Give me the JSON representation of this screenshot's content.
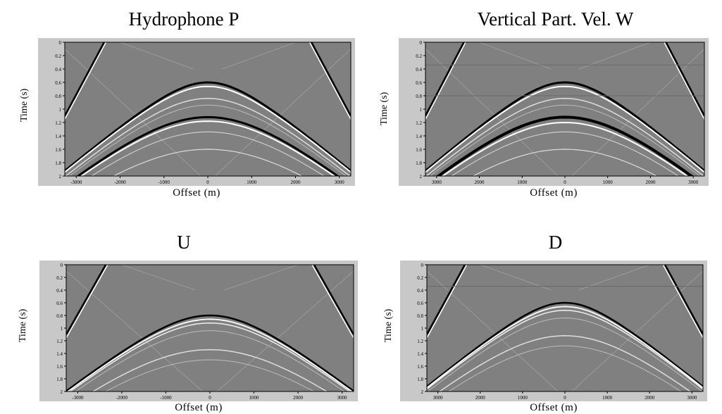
{
  "chart_data": [
    {
      "type": "heatmap",
      "title": "Hydrophone P",
      "xlabel": "Offset (m)",
      "ylabel": "Time (s)",
      "y_tick_labels": [
        "0",
        "0.2",
        "0.4",
        "0.6",
        "0.8",
        "1",
        "1.2",
        "1.4",
        "1.6",
        "1.8",
        "2"
      ],
      "x_tick_labels": [
        "-3000",
        "-2000",
        "-1000",
        "0",
        "1000",
        "2000",
        "3000"
      ],
      "colormap": "grayscale",
      "background_color": "#808080"
    },
    {
      "type": "heatmap",
      "title": "Vertical Part. Vel. W",
      "xlabel": "Offset (m)",
      "ylabel": "Time (s)",
      "y_tick_labels": [
        "0",
        "0.2",
        "0.4",
        "0.6",
        "0.8",
        "1",
        "1.2",
        "1.4",
        "1.6",
        "1.8",
        "2"
      ],
      "x_tick_labels": [
        "3000",
        "2000",
        "1000",
        "0",
        "1000",
        "2000",
        "3000"
      ],
      "colormap": "grayscale",
      "background_color": "#808080"
    },
    {
      "type": "heatmap",
      "title": "U",
      "xlabel": "Offset (m)",
      "ylabel": "Time (s)",
      "y_tick_labels": [
        "0",
        "0.2",
        "0.4",
        "0.6",
        "0.8",
        "1",
        "1.2",
        "1.4",
        "1.6",
        "1.8",
        "2"
      ],
      "x_tick_labels": [
        "-3000",
        "-2000",
        "-1000",
        "0",
        "1000",
        "2000",
        "3000"
      ],
      "colormap": "grayscale",
      "background_color": "#808080"
    },
    {
      "type": "heatmap",
      "title": "D",
      "xlabel": "Offset (m)",
      "ylabel": "Time (s)",
      "y_tick_labels": [
        "0",
        "0.2",
        "0.4",
        "0.6",
        "0.8",
        "1",
        "1.2",
        "1.4",
        "1.6",
        "1.8",
        "2"
      ],
      "x_tick_labels": [
        "3000",
        "2000",
        "1000",
        "0",
        "1000",
        "2000",
        "3000"
      ],
      "colormap": "grayscale",
      "background_color": "#808080"
    }
  ]
}
